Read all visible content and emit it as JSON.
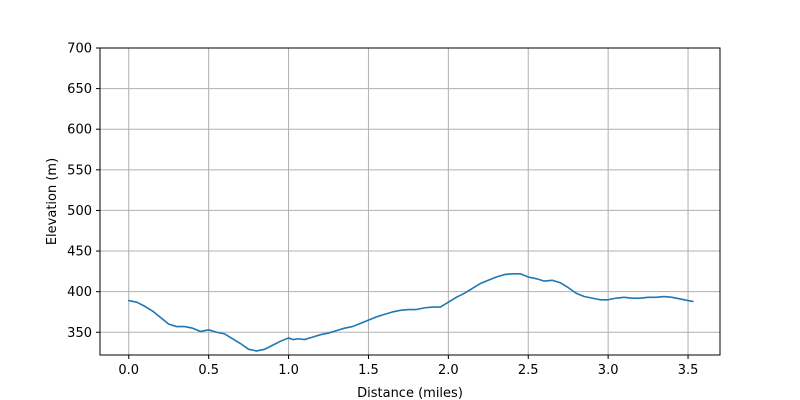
{
  "chart_data": {
    "type": "line",
    "title": "",
    "xlabel": "Distance (miles)",
    "ylabel": "Elevation (m)",
    "xlim": [
      -0.18,
      3.7
    ],
    "ylim": [
      322,
      700
    ],
    "xticks": [
      0.0,
      0.5,
      1.0,
      1.5,
      2.0,
      2.5,
      3.0,
      3.5
    ],
    "xtick_labels": [
      "0.0",
      "0.5",
      "1.0",
      "1.5",
      "2.0",
      "2.5",
      "3.0",
      "3.5"
    ],
    "yticks": [
      350,
      400,
      450,
      500,
      550,
      600,
      650,
      700
    ],
    "ytick_labels": [
      "350",
      "400",
      "450",
      "500",
      "550",
      "600",
      "650",
      "700"
    ],
    "grid": true,
    "line_color": "#1f77b4",
    "grid_color": "#b0b0b0",
    "series": [
      {
        "x": [
          0.0,
          0.05,
          0.1,
          0.15,
          0.2,
          0.25,
          0.3,
          0.35,
          0.4,
          0.45,
          0.5,
          0.55,
          0.6,
          0.65,
          0.7,
          0.75,
          0.8,
          0.85,
          0.9,
          0.95,
          1.0,
          1.03,
          1.06,
          1.1,
          1.15,
          1.2,
          1.25,
          1.3,
          1.35,
          1.4,
          1.45,
          1.5,
          1.55,
          1.6,
          1.65,
          1.7,
          1.75,
          1.8,
          1.85,
          1.9,
          1.95,
          2.0,
          2.05,
          2.1,
          2.15,
          2.2,
          2.25,
          2.3,
          2.35,
          2.4,
          2.45,
          2.5,
          2.55,
          2.6,
          2.65,
          2.7,
          2.75,
          2.8,
          2.85,
          2.9,
          2.95,
          3.0,
          3.05,
          3.1,
          3.15,
          3.2,
          3.25,
          3.3,
          3.35,
          3.4,
          3.45,
          3.5,
          3.53
        ],
        "y": [
          389,
          387,
          382,
          376,
          368,
          360,
          357,
          357,
          355,
          351,
          353,
          350,
          348,
          342,
          336,
          329,
          327,
          329,
          334,
          339,
          343,
          341,
          342,
          341,
          344,
          347,
          349,
          352,
          355,
          357,
          361,
          365,
          369,
          372,
          375,
          377,
          378,
          378,
          380,
          381,
          381,
          387,
          393,
          398,
          404,
          410,
          414,
          418,
          421,
          422,
          422,
          418,
          416,
          413,
          414,
          411,
          405,
          398,
          394,
          392,
          390,
          390,
          392,
          393,
          392,
          392,
          393,
          393,
          394,
          393,
          391,
          389,
          388
        ]
      }
    ]
  }
}
